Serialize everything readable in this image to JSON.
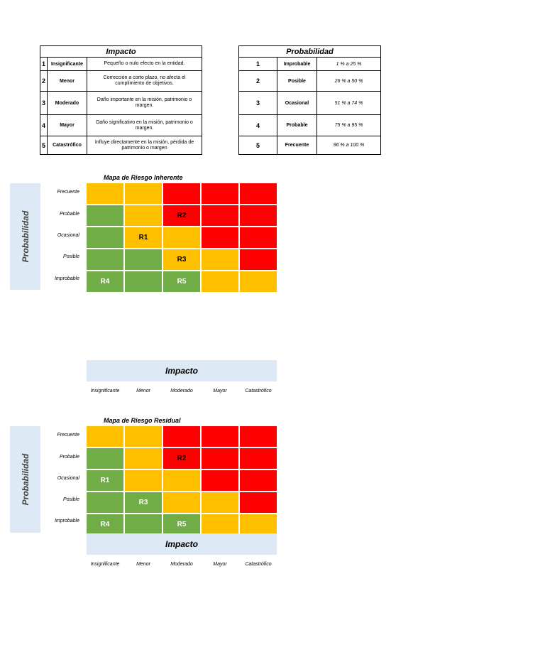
{
  "impact_table": {
    "title": "Impacto",
    "rows": [
      {
        "num": "1",
        "level": "Insignificante",
        "desc": "Pequeño o nulo efecto en la entidad."
      },
      {
        "num": "2",
        "level": "Menor",
        "desc": "Corrección a corto plazo, no afecta el cumplimiento de objetivos."
      },
      {
        "num": "3",
        "level": "Moderado",
        "desc": "Daño importante en la misión, patrimonio o margen."
      },
      {
        "num": "4",
        "level": "Mayor",
        "desc": "Daño significativo en la misión, patrimonio o margen."
      },
      {
        "num": "5",
        "level": "Catastrófico",
        "desc": "Influye directamente en la misión, pérdida de patrimonio o margen"
      }
    ]
  },
  "prob_table": {
    "title": "Probabilidad",
    "rows": [
      {
        "num": "1",
        "level": "Improbable",
        "range": "1 % a 25 %"
      },
      {
        "num": "2",
        "level": "Posible",
        "range": "26 % a 50 %"
      },
      {
        "num": "3",
        "level": "Ocasional",
        "range": "51 % a 74 %"
      },
      {
        "num": "4",
        "level": "Probable",
        "range": "75 % a 95 %"
      },
      {
        "num": "5",
        "level": "Frecuente",
        "range": "96 % a 100 %"
      }
    ]
  },
  "axis": {
    "prob_label": "Probabilidad",
    "impact_label": "Impacto",
    "row_labels": [
      "Frecuente",
      "Probable",
      "Ocasional",
      "Posible",
      "Improbable"
    ],
    "col_labels": [
      "Insignificante",
      "Menor",
      "Moderado",
      "Mayor",
      "Catastrófico"
    ]
  },
  "colors": {
    "green": "#70ad47",
    "yellow": "#ffc000",
    "red": "#ff0000",
    "axis_fill": "#dde9f4"
  },
  "inherent_map": {
    "title": "Mapa de Riesgo Inherente",
    "cells": [
      [
        {
          "c": "y",
          "t": ""
        },
        {
          "c": "y",
          "t": ""
        },
        {
          "c": "r",
          "t": ""
        },
        {
          "c": "r",
          "t": ""
        },
        {
          "c": "r",
          "t": ""
        }
      ],
      [
        {
          "c": "g",
          "t": ""
        },
        {
          "c": "y",
          "t": ""
        },
        {
          "c": "r",
          "t": "R2"
        },
        {
          "c": "r",
          "t": ""
        },
        {
          "c": "r",
          "t": ""
        }
      ],
      [
        {
          "c": "g",
          "t": ""
        },
        {
          "c": "y",
          "t": "R1"
        },
        {
          "c": "y",
          "t": ""
        },
        {
          "c": "r",
          "t": ""
        },
        {
          "c": "r",
          "t": ""
        }
      ],
      [
        {
          "c": "g",
          "t": ""
        },
        {
          "c": "g",
          "t": ""
        },
        {
          "c": "y",
          "t": "R3"
        },
        {
          "c": "y",
          "t": ""
        },
        {
          "c": "r",
          "t": ""
        }
      ],
      [
        {
          "c": "g",
          "t": "R4"
        },
        {
          "c": "g",
          "t": ""
        },
        {
          "c": "g",
          "t": "R5"
        },
        {
          "c": "y",
          "t": ""
        },
        {
          "c": "y",
          "t": ""
        }
      ]
    ]
  },
  "residual_map": {
    "title": "Mapa de Riesgo Residual",
    "cells": [
      [
        {
          "c": "y",
          "t": ""
        },
        {
          "c": "y",
          "t": ""
        },
        {
          "c": "r",
          "t": ""
        },
        {
          "c": "r",
          "t": ""
        },
        {
          "c": "r",
          "t": ""
        }
      ],
      [
        {
          "c": "g",
          "t": ""
        },
        {
          "c": "y",
          "t": ""
        },
        {
          "c": "r",
          "t": "R2"
        },
        {
          "c": "r",
          "t": ""
        },
        {
          "c": "r",
          "t": ""
        }
      ],
      [
        {
          "c": "g",
          "t": "R1"
        },
        {
          "c": "y",
          "t": ""
        },
        {
          "c": "y",
          "t": ""
        },
        {
          "c": "r",
          "t": ""
        },
        {
          "c": "r",
          "t": ""
        }
      ],
      [
        {
          "c": "g",
          "t": ""
        },
        {
          "c": "g",
          "t": "R3"
        },
        {
          "c": "y",
          "t": ""
        },
        {
          "c": "y",
          "t": ""
        },
        {
          "c": "r",
          "t": ""
        }
      ],
      [
        {
          "c": "g",
          "t": "R4"
        },
        {
          "c": "g",
          "t": ""
        },
        {
          "c": "g",
          "t": "R5"
        },
        {
          "c": "y",
          "t": ""
        },
        {
          "c": "y",
          "t": ""
        }
      ]
    ]
  }
}
